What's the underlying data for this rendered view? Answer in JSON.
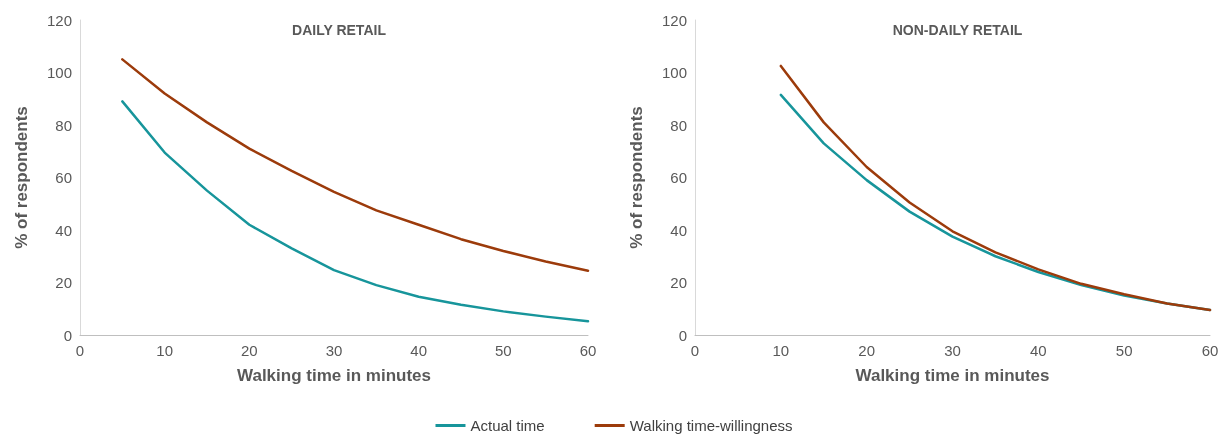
{
  "chart_data": [
    {
      "type": "line",
      "title": "DAILY RETAIL",
      "xlabel": "Walking time in minutes",
      "ylabel": "% of respondents",
      "x": [
        5,
        10,
        15,
        20,
        25,
        30,
        35,
        40,
        45,
        50,
        55,
        60
      ],
      "series": [
        {
          "name": "Actual time",
          "color": "#17959b",
          "values": [
            89,
            69.5,
            55,
            42,
            33,
            24.7,
            19,
            14.6,
            11.5,
            9,
            7,
            5.2
          ]
        },
        {
          "name": "Walking time-willingness",
          "color": "#9c3b0b",
          "values": [
            105,
            92,
            81,
            71,
            62.5,
            54.5,
            47.5,
            42,
            36.5,
            32,
            28,
            24.5
          ]
        }
      ],
      "xlim": [
        0,
        60
      ],
      "xticks": [
        0,
        10,
        20,
        30,
        40,
        50,
        60
      ],
      "ylim": [
        0,
        120
      ],
      "yticks": [
        0,
        20,
        40,
        60,
        80,
        100,
        120
      ],
      "grid": false,
      "legend": "bottom",
      "marker": "none",
      "line_style": "solid"
    },
    {
      "type": "line",
      "title": "NON-DAILY RETAIL",
      "xlabel": "Walking time in minutes",
      "ylabel": "% of respondents",
      "x": [
        10,
        15,
        20,
        25,
        30,
        35,
        40,
        45,
        50,
        55,
        60
      ],
      "series": [
        {
          "color": "#17959b",
          "values": [
            91.5,
            73,
            59,
            47,
            37.5,
            30,
            24,
            19,
            15,
            12,
            9.5
          ]
        },
        {
          "color": "#9c3b0b",
          "values": [
            102.5,
            81,
            64,
            50.5,
            39.5,
            31.5,
            25,
            19.5,
            15.5,
            12,
            9.5
          ]
        }
      ],
      "xlim": [
        0,
        60
      ],
      "xticks": [
        0,
        10,
        20,
        30,
        40,
        50,
        60
      ],
      "ylim": [
        0,
        120
      ],
      "yticks": [
        0,
        20,
        40,
        60,
        80,
        100,
        120
      ],
      "grid": false,
      "legend": false,
      "marker": "none",
      "line_style": "solid"
    }
  ]
}
